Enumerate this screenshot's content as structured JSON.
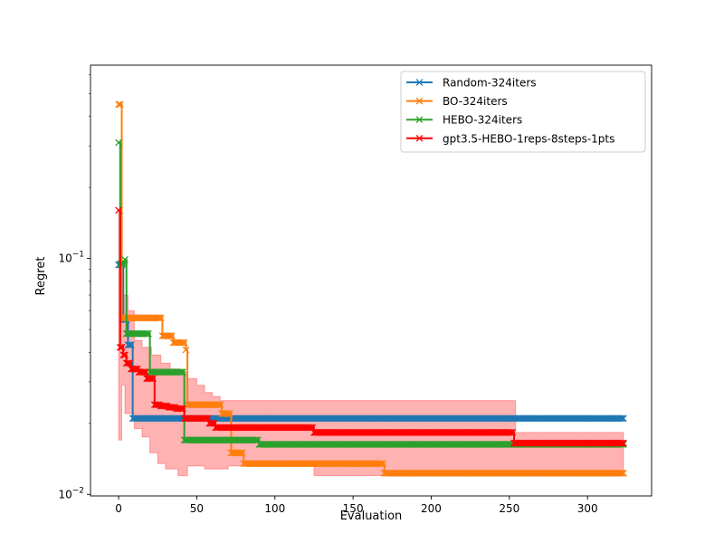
{
  "chart_data": {
    "type": "line",
    "title": "",
    "xlabel": "Evaluation",
    "ylabel": "Regret",
    "xlim": [
      -18,
      341
    ],
    "ylim": [
      0.00985,
      0.66
    ],
    "yscale": "log",
    "grid": false,
    "legend_position": "top-right",
    "x_ticks": [
      0,
      50,
      100,
      150,
      200,
      250,
      300
    ],
    "y_ticks": [
      {
        "value": 0.01,
        "label": "10",
        "exp": "−2"
      },
      {
        "value": 0.1,
        "label": "10",
        "exp": "−1"
      }
    ],
    "series": [
      {
        "name": "Random-324iters",
        "color": "#1f77b4",
        "steps": [
          [
            0,
            0.094
          ],
          [
            3,
            0.055
          ],
          [
            6,
            0.043
          ],
          [
            9,
            0.021
          ],
          [
            323,
            0.021
          ]
        ]
      },
      {
        "name": "BO-324iters",
        "color": "#ff7f0e",
        "steps": [
          [
            0,
            0.45
          ],
          [
            2,
            0.056
          ],
          [
            28,
            0.047
          ],
          [
            35,
            0.044
          ],
          [
            43,
            0.041
          ],
          [
            44,
            0.024
          ],
          [
            66,
            0.022
          ],
          [
            72,
            0.015
          ],
          [
            80,
            0.0135
          ],
          [
            170,
            0.0123
          ],
          [
            323,
            0.0123
          ]
        ]
      },
      {
        "name": "HEBO-324iters",
        "color": "#2ca02c",
        "steps": [
          [
            0,
            0.31
          ],
          [
            1,
            0.095
          ],
          [
            4,
            0.099
          ],
          [
            5,
            0.048
          ],
          [
            14,
            0.048
          ],
          [
            20,
            0.033
          ],
          [
            41,
            0.033
          ],
          [
            42,
            0.017
          ],
          [
            90,
            0.0163
          ],
          [
            323,
            0.0163
          ]
        ]
      },
      {
        "name": "gpt3.5-HEBO-1reps-8steps-1pts",
        "color": "#ff0000",
        "steps": [
          [
            0,
            0.16
          ],
          [
            1,
            0.042
          ],
          [
            3,
            0.039
          ],
          [
            5,
            0.036
          ],
          [
            8,
            0.034
          ],
          [
            13,
            0.033
          ],
          [
            18,
            0.031
          ],
          [
            23,
            0.024
          ],
          [
            27,
            0.0237
          ],
          [
            32,
            0.0234
          ],
          [
            37,
            0.0231
          ],
          [
            42,
            0.021
          ],
          [
            58,
            0.02
          ],
          [
            62,
            0.0192
          ],
          [
            125,
            0.0183
          ],
          [
            253,
            0.0165
          ],
          [
            323,
            0.0165
          ]
        ]
      }
    ],
    "band": {
      "color": "#ff0000",
      "upper": [
        [
          0,
          0.16
        ],
        [
          2,
          0.07
        ],
        [
          6,
          0.06
        ],
        [
          10,
          0.045
        ],
        [
          15,
          0.042
        ],
        [
          21,
          0.039
        ],
        [
          27,
          0.036
        ],
        [
          33,
          0.034
        ],
        [
          38,
          0.033
        ],
        [
          44,
          0.031
        ],
        [
          50,
          0.029
        ],
        [
          55,
          0.027
        ],
        [
          60,
          0.026
        ],
        [
          65,
          0.025
        ],
        [
          253,
          0.025
        ],
        [
          254,
          0.0183
        ],
        [
          323,
          0.0183
        ]
      ],
      "lower": [
        [
          0,
          0.017
        ],
        [
          2,
          0.029
        ],
        [
          4,
          0.022
        ],
        [
          10,
          0.019
        ],
        [
          15,
          0.0175
        ],
        [
          20,
          0.015
        ],
        [
          25,
          0.0135
        ],
        [
          30,
          0.0128
        ],
        [
          38,
          0.012
        ],
        [
          42,
          0.012
        ],
        [
          44,
          0.0132
        ],
        [
          55,
          0.0128
        ],
        [
          70,
          0.0132
        ],
        [
          95,
          0.0132
        ],
        [
          124,
          0.0132
        ],
        [
          125,
          0.012
        ],
        [
          323,
          0.012
        ]
      ]
    }
  }
}
